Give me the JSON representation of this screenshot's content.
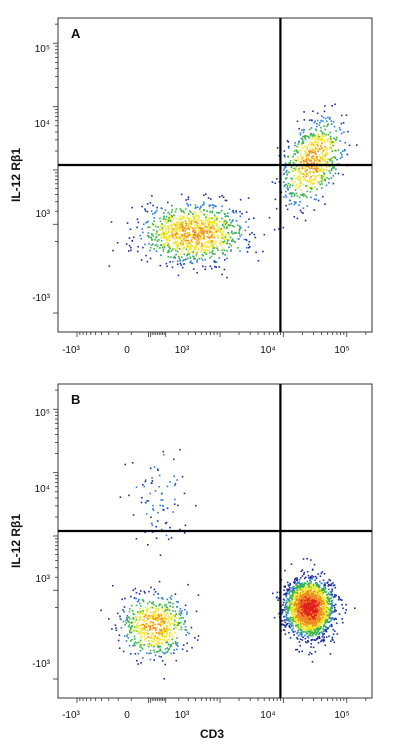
{
  "chart_data": [
    {
      "type": "scatter",
      "subtype": "flow-cytometry-density-dot-plot",
      "panel_label": "A",
      "xlabel": "CD3",
      "ylabel": "IL-12 Rβ1",
      "x_scale": "biexponential",
      "y_scale": "biexponential",
      "xlim": [
        -2000,
        250000
      ],
      "ylim": [
        -2000,
        250000
      ],
      "x_tick_labels": [
        "-10³",
        "0",
        "10³",
        "10⁴",
        "10⁵"
      ],
      "y_tick_labels": [
        "10⁵",
        "10⁴",
        "10³",
        "-10³"
      ],
      "quadrant_gate": {
        "x": 9000,
        "y": 1200
      },
      "grid": false,
      "color_scale": [
        "#1f2f9a",
        "#2e7fd6",
        "#39b54a",
        "#f2e82c",
        "#f08a24",
        "#e0201f"
      ],
      "populations": [
        {
          "center_x": 350,
          "center_y": 50,
          "count": 1100
        },
        {
          "center_x": 28000,
          "center_y": 1400,
          "count": 700
        }
      ]
    },
    {
      "type": "scatter",
      "subtype": "flow-cytometry-density-dot-plot",
      "panel_label": "B",
      "xlabel": "CD3",
      "ylabel": "IL-12 Rβ1",
      "x_scale": "biexponential",
      "y_scale": "biexponential",
      "xlim": [
        -2000,
        250000
      ],
      "ylim": [
        -2000,
        250000
      ],
      "x_tick_labels": [
        "-10³",
        "0",
        "10³",
        "10⁴",
        "10⁵"
      ],
      "y_tick_labels": [
        "10⁵",
        "10⁴",
        "10³",
        "-10³"
      ],
      "quadrant_gate": {
        "x": 9000,
        "y": 1200
      },
      "grid": false,
      "color_scale": [
        "#1f2f9a",
        "#2e7fd6",
        "#39b54a",
        "#f2e82c",
        "#f08a24",
        "#e0201f"
      ],
      "populations": [
        {
          "center_x": 30,
          "center_y": -100,
          "count": 650
        },
        {
          "center_x": 25000,
          "center_y": 0,
          "count": 2400
        },
        {
          "center_x": 50,
          "center_y": 4000,
          "count": 80
        }
      ]
    }
  ]
}
